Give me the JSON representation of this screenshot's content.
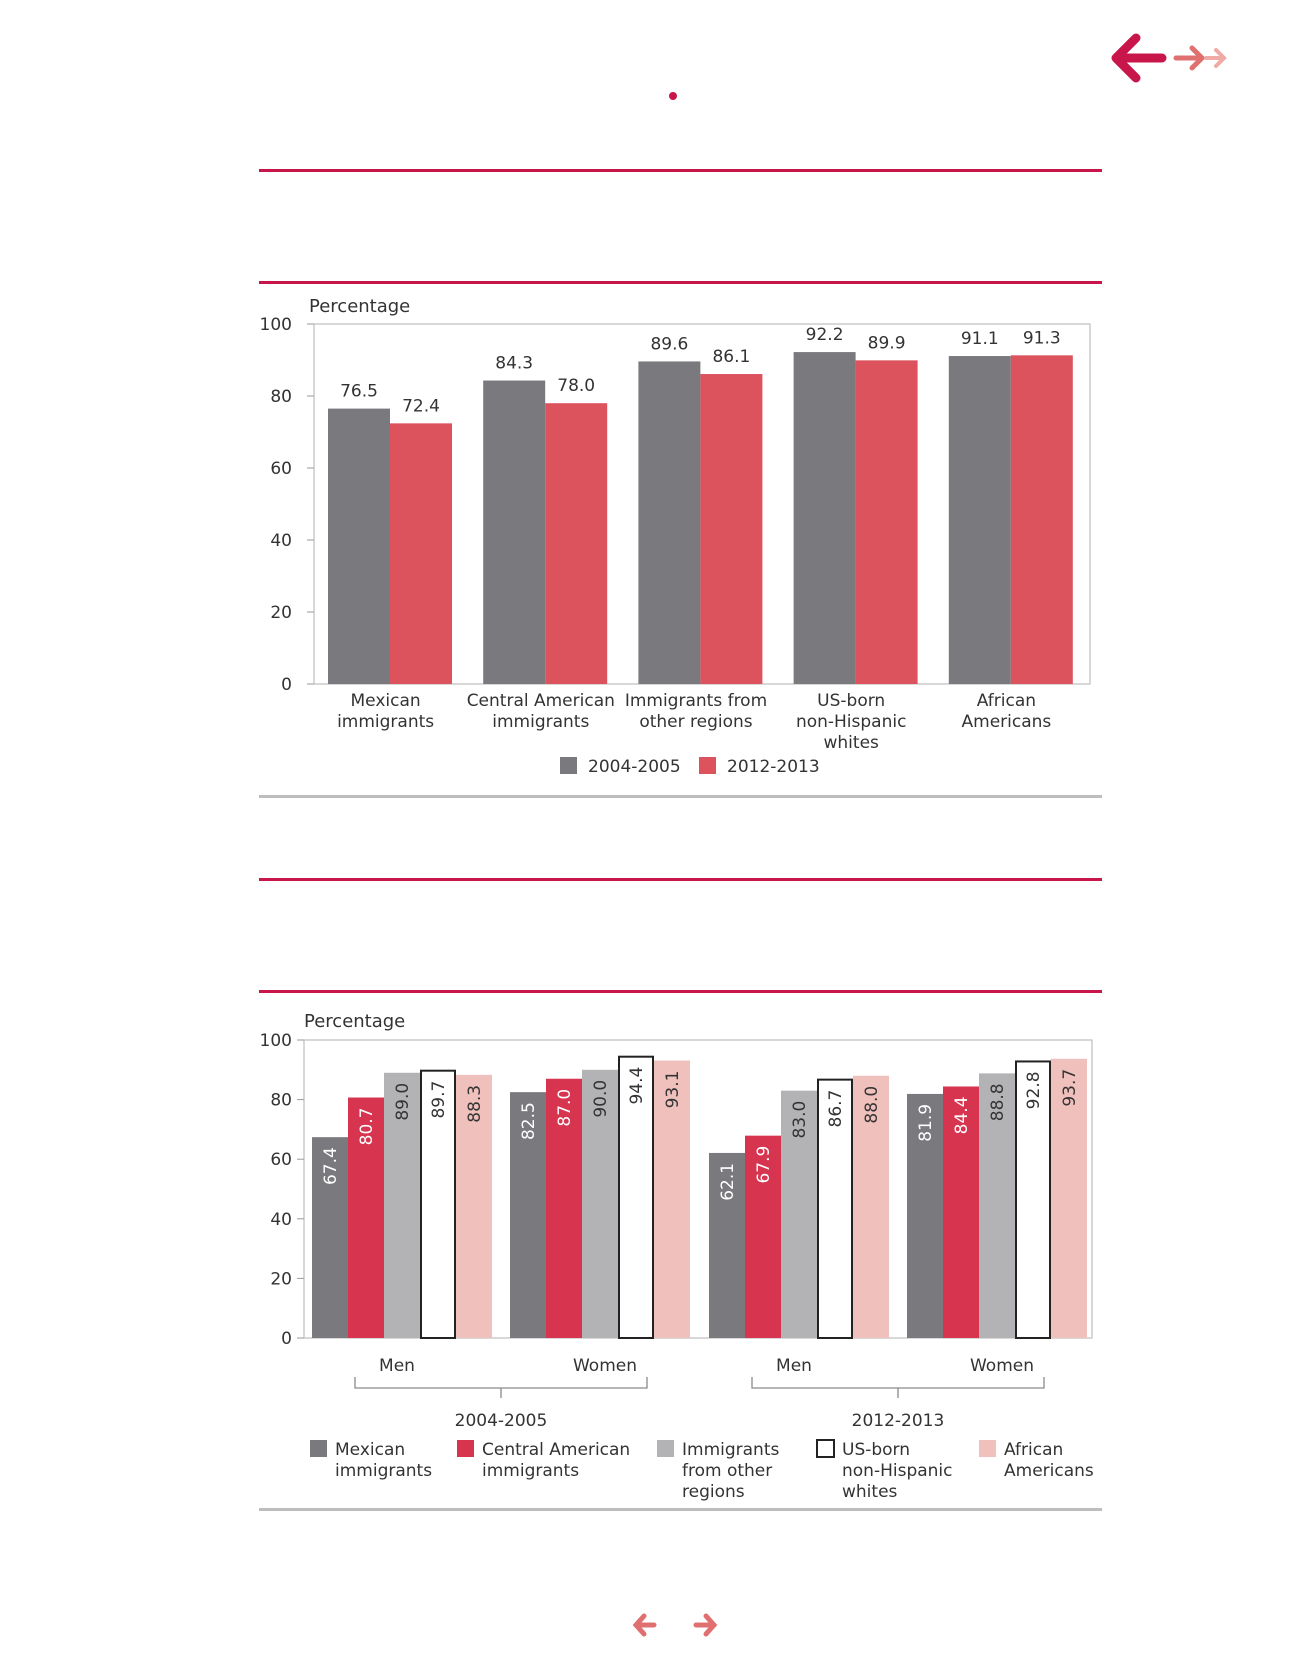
{
  "colors": {
    "accent": "#c8164a",
    "dark_gray": "#7a7a7e",
    "red": "#dc525d",
    "crimson": "#d6344f",
    "light_gray": "#b3b3b5",
    "white": "#ffffff",
    "pink": "#f0c0bc",
    "rule_gray": "#bdbdbd"
  },
  "nav": {
    "top_back_icon": "arrow-left-icon",
    "top_forward_icon": "double-arrow-right-icon",
    "bottom_prev_icon": "arrow-left-icon",
    "bottom_next_icon": "arrow-right-icon"
  },
  "chart_data": [
    {
      "type": "bar",
      "ylabel": "Percentage",
      "ylim": [
        0,
        100
      ],
      "yticks": [
        0,
        20,
        40,
        60,
        80,
        100
      ],
      "categories": [
        [
          "Mexican",
          "immigrants"
        ],
        [
          "Central American",
          "immigrants"
        ],
        [
          "Immigrants from",
          "other regions"
        ],
        [
          "US-born",
          "non-Hispanic",
          "whites"
        ],
        [
          "African",
          "Americans"
        ]
      ],
      "series": [
        {
          "name": "2004-2005",
          "color": "#7a7a7e",
          "values": [
            76.5,
            84.3,
            89.6,
            92.2,
            91.1
          ],
          "labels": [
            "76.5",
            "84.3",
            "89.6",
            "92.2",
            "91.1"
          ]
        },
        {
          "name": "2012-2013",
          "color": "#dc525d",
          "values": [
            72.4,
            78.0,
            86.1,
            89.9,
            91.3
          ],
          "labels": [
            "72.4",
            "78.0",
            "86.1",
            "89.9",
            "91.3"
          ]
        }
      ],
      "legend": "bottom-center"
    },
    {
      "type": "bar",
      "ylabel": "Percentage",
      "ylim": [
        0,
        100
      ],
      "yticks": [
        0,
        20,
        40,
        60,
        80,
        100
      ],
      "groups": [
        {
          "period": "2004-2005",
          "subgroups": [
            {
              "name": "Men",
              "values": [
                67.4,
                80.7,
                89.0,
                89.7,
                88.3
              ],
              "labels": [
                "67.4",
                "80.7",
                "89.0",
                "89.7",
                "88.3"
              ]
            },
            {
              "name": "Women",
              "values": [
                82.5,
                87.0,
                90.0,
                94.4,
                93.1
              ],
              "labels": [
                "82.5",
                "87.0",
                "90.0",
                "94.4",
                "93.1"
              ]
            }
          ]
        },
        {
          "period": "2012-2013",
          "subgroups": [
            {
              "name": "Men",
              "values": [
                62.1,
                67.9,
                83.0,
                86.7,
                88.0
              ],
              "labels": [
                "62.1",
                "67.9",
                "83.0",
                "86.7",
                "88.0"
              ]
            },
            {
              "name": "Women",
              "values": [
                81.9,
                84.4,
                88.8,
                92.8,
                93.7
              ],
              "labels": [
                "81.9",
                "84.4",
                "88.8",
                "92.8",
                "93.7"
              ]
            }
          ]
        }
      ],
      "series": [
        {
          "name": [
            "Mexican",
            "immigrants"
          ],
          "color": "#7a7a7e",
          "label_color": "#ffffff"
        },
        {
          "name": [
            "Central American",
            "immigrants"
          ],
          "color": "#d6344f",
          "label_color": "#ffffff"
        },
        {
          "name": [
            "Immigrants",
            "from other",
            "regions"
          ],
          "color": "#b3b3b5",
          "label_color": "#333333"
        },
        {
          "name": [
            "US-born",
            "non-Hispanic",
            "whites"
          ],
          "color": "#ffffff",
          "label_color": "#333333"
        },
        {
          "name": [
            "African",
            "Americans"
          ],
          "color": "#f0c0bc",
          "label_color": "#333333"
        }
      ],
      "legend": "bottom"
    }
  ]
}
